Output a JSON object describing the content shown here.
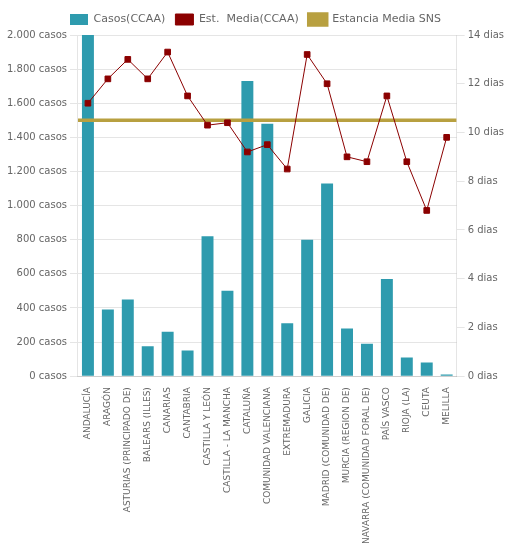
{
  "chart_data": {
    "type": "bar",
    "categories": [
      "ANDALUCÍA",
      "ARAGÓN",
      "ASTURIAS (PRINCIPADO DE)",
      "BALEARS (ILLES)",
      "CANARIAS",
      "CANTABRIA",
      "CASTILLA Y LEÓN",
      "CASTILLA - LA MANCHA",
      "CATALUÑA",
      "COMUNIDAD VALENCIANA",
      "EXTREMADURA",
      "GALICIA",
      "MADRID (COMUNIDAD DE)",
      "MURCIA (REGION DE)",
      "NAVARRA (COMUNIDAD FORAL DE)",
      "PAÍS VASCO",
      "RIOJA (LA)",
      "CEUTA",
      "MELILLA"
    ],
    "series": [
      {
        "name": "Casos(CCAA)",
        "type": "bar",
        "color": "#2e9bae",
        "values": [
          2000,
          390,
          450,
          175,
          260,
          150,
          820,
          500,
          1730,
          1480,
          310,
          800,
          1130,
          280,
          190,
          570,
          110,
          80,
          10
        ]
      },
      {
        "name": "Est.  Media(CCAA)",
        "type": "line",
        "axis": "y2",
        "color": "#8B0000",
        "marker": "square",
        "values": [
          11.2,
          12.2,
          13.0,
          12.2,
          13.3,
          11.5,
          10.3,
          10.4,
          9.2,
          9.5,
          8.5,
          13.2,
          12.0,
          9.0,
          8.8,
          11.5,
          8.8,
          6.8,
          9.8
        ]
      },
      {
        "name": "Estancia Media SNS",
        "type": "hline",
        "axis": "y2",
        "color": "#B8A040",
        "value": 10.5
      }
    ],
    "ylim": [
      0,
      2000
    ],
    "yticks": [
      {
        "value": 0,
        "label": "0 casos"
      },
      {
        "value": 200,
        "label": "200 casos"
      },
      {
        "value": 400,
        "label": "400 casos"
      },
      {
        "value": 600,
        "label": "600 casos"
      },
      {
        "value": 800,
        "label": "800 casos"
      },
      {
        "value": 1000,
        "label": "1.000 casos"
      },
      {
        "value": 1200,
        "label": "1.200 casos"
      },
      {
        "value": 1400,
        "label": "1.400 casos"
      },
      {
        "value": 1600,
        "label": "1.600 casos"
      },
      {
        "value": 1800,
        "label": "1.800 casos"
      },
      {
        "value": 2000,
        "label": "2.000 casos"
      }
    ],
    "y2lim": [
      0,
      14
    ],
    "y2ticks": [
      {
        "value": 0,
        "label": "0 dias"
      },
      {
        "value": 2,
        "label": "2 dias"
      },
      {
        "value": 4,
        "label": "4 dias"
      },
      {
        "value": 6,
        "label": "6 dias"
      },
      {
        "value": 8,
        "label": "8 dias"
      },
      {
        "value": 10,
        "label": "10 dias"
      },
      {
        "value": 12,
        "label": "12 dias"
      },
      {
        "value": 14,
        "label": "14 dias"
      }
    ],
    "grid": true,
    "legend": "top"
  }
}
